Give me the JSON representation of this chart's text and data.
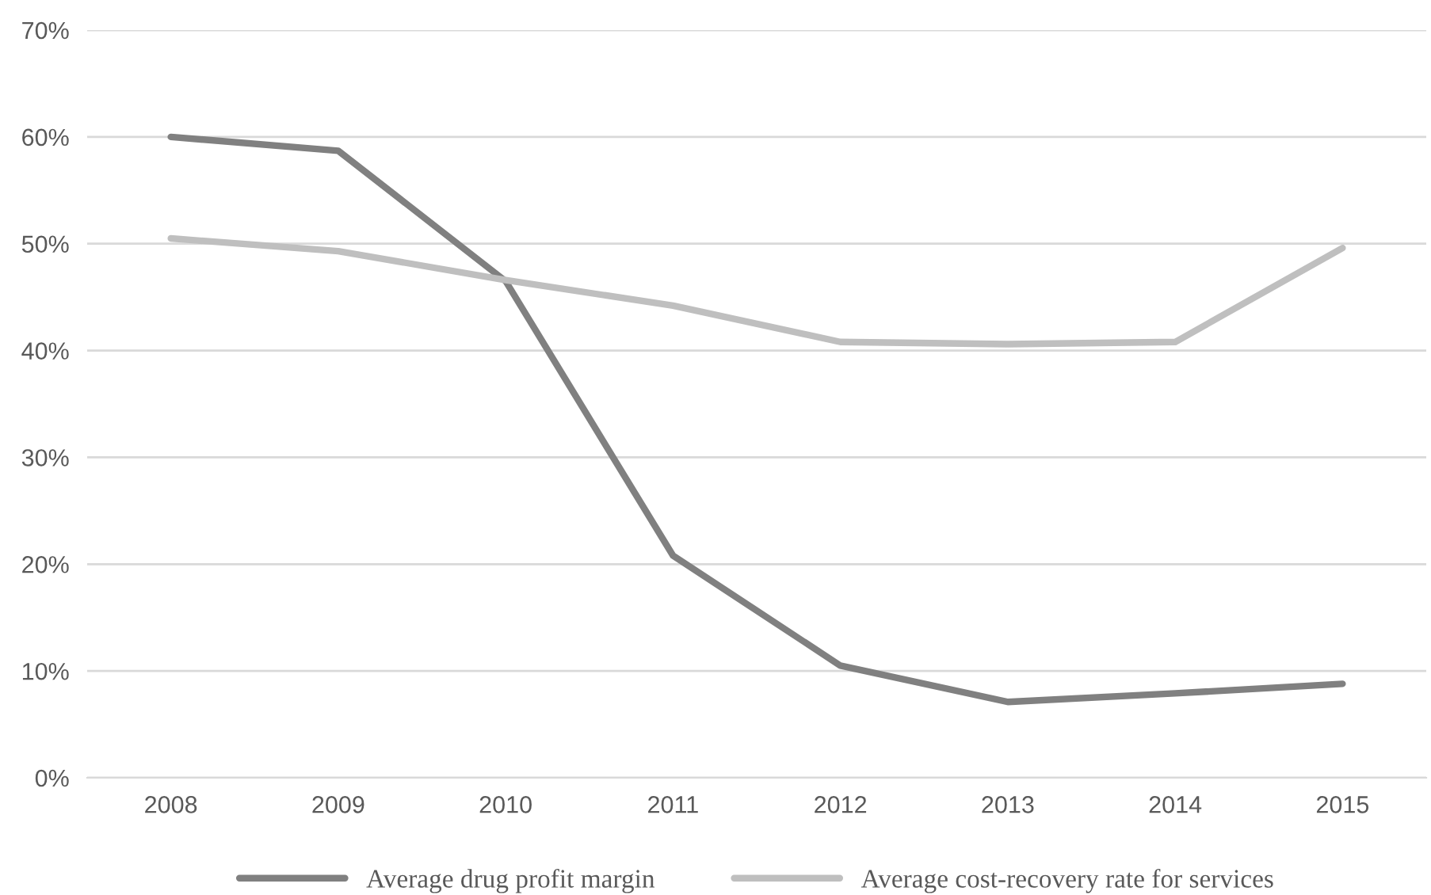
{
  "chart_data": {
    "type": "line",
    "categories": [
      "2008",
      "2009",
      "2010",
      "2011",
      "2012",
      "2013",
      "2014",
      "2015"
    ],
    "series": [
      {
        "name": "Average drug profit margin",
        "color": "#808080",
        "values": [
          60.0,
          58.7,
          46.5,
          20.8,
          10.5,
          7.1,
          7.9,
          8.8
        ]
      },
      {
        "name": "Average cost-recovery rate for services",
        "color": "#bfbfbf",
        "values": [
          50.5,
          49.3,
          46.6,
          44.2,
          40.8,
          40.6,
          40.8,
          49.6
        ]
      }
    ],
    "ylim": [
      0,
      70
    ],
    "yticks": [
      {
        "value": 0,
        "label": "0%"
      },
      {
        "value": 10,
        "label": "10%"
      },
      {
        "value": 20,
        "label": "20%"
      },
      {
        "value": 30,
        "label": "30%"
      },
      {
        "value": 40,
        "label": "40%"
      },
      {
        "value": 50,
        "label": "50%"
      },
      {
        "value": 60,
        "label": "60%"
      },
      {
        "value": 70,
        "label": "70%"
      }
    ],
    "grid": "y",
    "legend": "bottom",
    "marker": "none",
    "line_style": "solid"
  }
}
